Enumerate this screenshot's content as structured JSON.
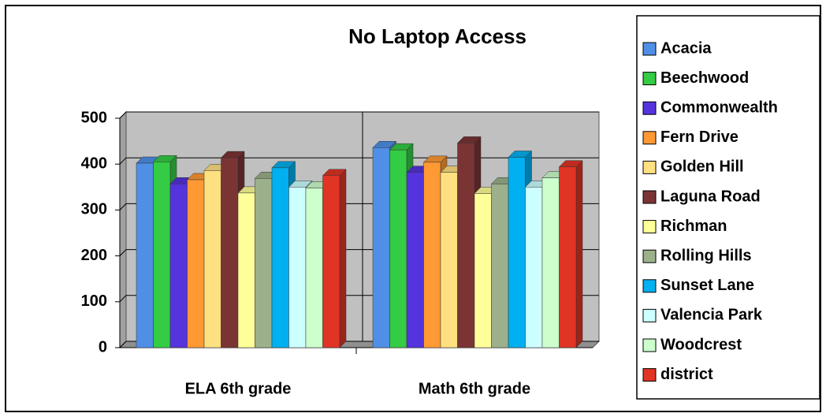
{
  "chart_data": {
    "type": "bar3d",
    "title": "No Laptop Access",
    "categories": [
      "ELA 6th grade",
      "Math 6th grade"
    ],
    "series": [
      {
        "name": "Acacia",
        "color": "#4f8fe6",
        "values": [
          402,
          436
        ]
      },
      {
        "name": "Beechwood",
        "color": "#33cc44",
        "values": [
          405,
          431
        ]
      },
      {
        "name": "Commonwealth",
        "color": "#5533dd",
        "values": [
          357,
          382
        ]
      },
      {
        "name": "Fern Drive",
        "color": "#ff9933",
        "values": [
          366,
          404
        ]
      },
      {
        "name": "Golden Hill",
        "color": "#ffe080",
        "values": [
          386,
          382
        ]
      },
      {
        "name": "Laguna Road",
        "color": "#7b3434",
        "values": [
          414,
          446
        ]
      },
      {
        "name": "Richman",
        "color": "#ffff99",
        "values": [
          337,
          336
        ]
      },
      {
        "name": "Rolling Hills",
        "color": "#9cb08c",
        "values": [
          369,
          357
        ]
      },
      {
        "name": "Sunset Lane",
        "color": "#00b0f0",
        "values": [
          392,
          415
        ]
      },
      {
        "name": "Valencia Park",
        "color": "#ccffff",
        "values": [
          350,
          350
        ]
      },
      {
        "name": "Woodcrest",
        "color": "#ccffcc",
        "values": [
          348,
          370
        ]
      },
      {
        "name": "district",
        "color": "#e03424",
        "values": [
          375,
          394
        ]
      }
    ],
    "ylim": [
      0,
      500
    ],
    "yticks": [
      0,
      100,
      200,
      300,
      400,
      500
    ],
    "grid": true,
    "legend": "right"
  }
}
